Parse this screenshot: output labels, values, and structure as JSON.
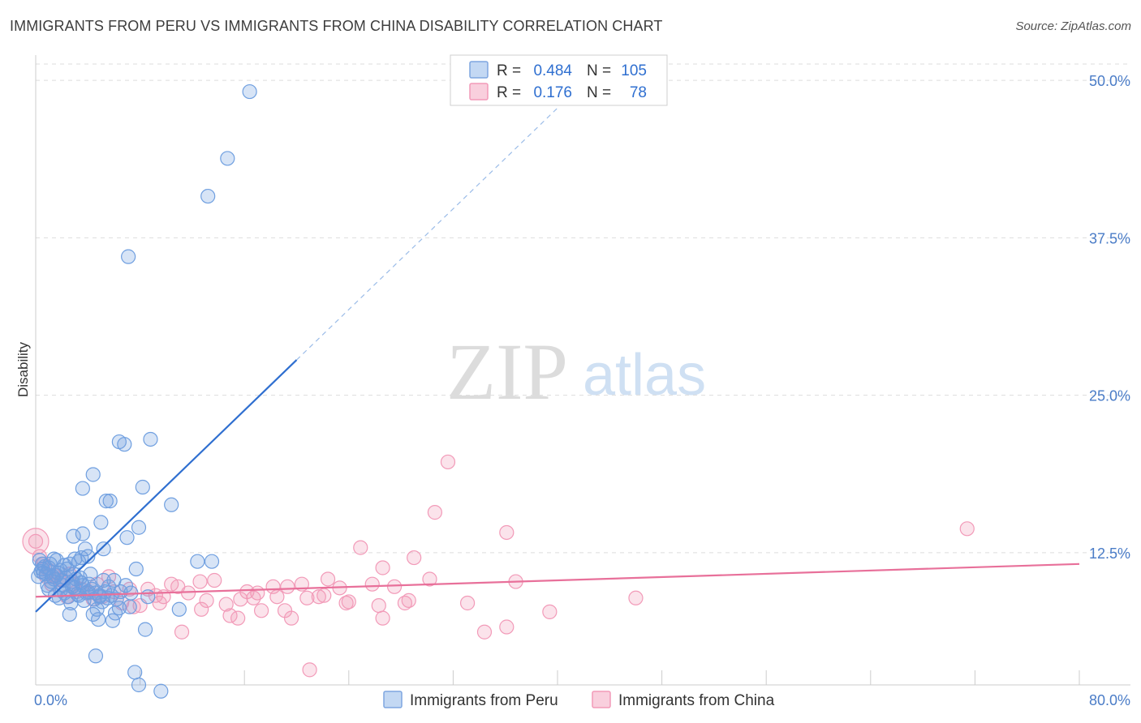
{
  "title": "IMMIGRANTS FROM PERU VS IMMIGRANTS FROM CHINA DISABILITY CORRELATION CHART",
  "source": "Source: ZipAtlas.com",
  "watermark": {
    "zip": "ZIP",
    "atlas": "atlas"
  },
  "colors": {
    "peru": "#6f9fe0",
    "peru_line": "#2f6fd0",
    "china": "#f29ab8",
    "china_line": "#e8709a",
    "tick": "#4a7cc7"
  },
  "legend": {
    "peru": {
      "r_label": "R =",
      "r_value": "0.484",
      "n_label": "N =",
      "n_value": "105"
    },
    "china": {
      "r_label": "R =",
      "r_value": "0.176",
      "n_label": "N =",
      "n_value": "78"
    }
  },
  "chart_data": {
    "type": "scatter",
    "title": "IMMIGRANTS FROM PERU VS IMMIGRANTS FROM CHINA DISABILITY CORRELATION CHART",
    "xlabel": "",
    "ylabel": "Disability",
    "xlim": [
      0,
      80
    ],
    "ylim": [
      2,
      52
    ],
    "x_tick_labels": [
      "0.0%",
      "80.0%"
    ],
    "y_ticks": [
      12.5,
      25.0,
      37.5,
      50.0
    ],
    "y_tick_labels": [
      "12.5%",
      "25.0%",
      "37.5%",
      "50.0%"
    ],
    "series": [
      {
        "name": "Immigrants from Peru",
        "r": 0.484,
        "n": 105,
        "trend": {
          "x1": 0,
          "y1": 7.8,
          "x2": 20,
          "y2": 27.8,
          "dash_to_x": 40,
          "dash_to_y": 47.8
        },
        "points": [
          [
            16.4,
            49.1
          ],
          [
            14.7,
            43.8
          ],
          [
            13.2,
            40.8
          ],
          [
            7.1,
            36.0
          ],
          [
            6.4,
            21.3
          ],
          [
            6.8,
            21.1
          ],
          [
            8.8,
            21.5
          ],
          [
            4.4,
            18.7
          ],
          [
            3.6,
            17.6
          ],
          [
            8.2,
            17.7
          ],
          [
            5.4,
            16.6
          ],
          [
            5.7,
            16.6
          ],
          [
            10.4,
            16.3
          ],
          [
            5.0,
            14.9
          ],
          [
            7.9,
            14.5
          ],
          [
            3.6,
            14.0
          ],
          [
            2.9,
            13.8
          ],
          [
            7.0,
            13.7
          ],
          [
            3.8,
            12.8
          ],
          [
            5.2,
            12.8
          ],
          [
            1.4,
            12.0
          ],
          [
            3.0,
            12.0
          ],
          [
            3.5,
            12.1
          ],
          [
            4.0,
            12.2
          ],
          [
            12.4,
            11.8
          ],
          [
            13.5,
            11.8
          ],
          [
            0.5,
            11.2
          ],
          [
            1.0,
            11.3
          ],
          [
            0.4,
            11.0
          ],
          [
            2.2,
            11.5
          ],
          [
            2.6,
            11.6
          ],
          [
            3.3,
            11.8
          ],
          [
            0.8,
            10.8
          ],
          [
            1.3,
            10.6
          ],
          [
            1.7,
            10.9
          ],
          [
            2.4,
            11.2
          ],
          [
            3.1,
            10.4
          ],
          [
            7.7,
            11.2
          ],
          [
            1.2,
            10.2
          ],
          [
            2.0,
            10.3
          ],
          [
            3.5,
            10.1
          ],
          [
            4.1,
            10.0
          ],
          [
            5.2,
            10.3
          ],
          [
            6.0,
            10.3
          ],
          [
            0.9,
            9.9
          ],
          [
            1.9,
            9.5
          ],
          [
            2.8,
            9.8
          ],
          [
            3.2,
            9.2
          ],
          [
            4.3,
            9.6
          ],
          [
            5.6,
            9.8
          ],
          [
            6.9,
            9.9
          ],
          [
            1.5,
            9.1
          ],
          [
            2.5,
            9.0
          ],
          [
            3.9,
            9.3
          ],
          [
            4.9,
            9.1
          ],
          [
            5.8,
            9.1
          ],
          [
            7.3,
            9.3
          ],
          [
            2.7,
            8.5
          ],
          [
            3.7,
            8.7
          ],
          [
            4.5,
            8.8
          ],
          [
            5.1,
            8.6
          ],
          [
            6.2,
            8.8
          ],
          [
            1.8,
            8.9
          ],
          [
            4.7,
            8.0
          ],
          [
            6.4,
            8.1
          ],
          [
            7.2,
            8.2
          ],
          [
            11.0,
            8.0
          ],
          [
            2.6,
            7.6
          ],
          [
            4.4,
            7.6
          ],
          [
            6.1,
            7.7
          ],
          [
            4.8,
            7.2
          ],
          [
            5.9,
            7.1
          ],
          [
            8.4,
            6.4
          ],
          [
            4.6,
            4.3
          ],
          [
            7.6,
            3.0
          ],
          [
            7.9,
            2.0
          ],
          [
            9.6,
            1.5
          ],
          [
            0.3,
            11.9
          ],
          [
            1.1,
            11.6
          ],
          [
            1.6,
            10.7
          ],
          [
            2.3,
            10.5
          ],
          [
            2.9,
            10.8
          ],
          [
            3.4,
            10.5
          ],
          [
            4.2,
            10.8
          ],
          [
            0.6,
            10.9
          ],
          [
            1.4,
            10.4
          ],
          [
            2.1,
            9.9
          ],
          [
            3.0,
            9.7
          ],
          [
            4.6,
            9.3
          ],
          [
            5.3,
            9.4
          ],
          [
            0.2,
            10.6
          ],
          [
            0.7,
            11.4
          ],
          [
            1.9,
            11.1
          ],
          [
            2.8,
            10.2
          ],
          [
            3.6,
            9.9
          ],
          [
            4.0,
            9.4
          ],
          [
            4.9,
            9.0
          ],
          [
            5.5,
            8.9
          ],
          [
            6.5,
            9.4
          ],
          [
            8.6,
            9.0
          ],
          [
            1.0,
            9.6
          ],
          [
            2.2,
            9.3
          ],
          [
            3.3,
            9.1
          ],
          [
            0.5,
            11.6
          ],
          [
            1.6,
            11.9
          ]
        ]
      },
      {
        "name": "Immigrants from China",
        "r": 0.176,
        "n": 78,
        "trend": {
          "x1": 0,
          "y1": 9.0,
          "x2": 80,
          "y2": 11.6
        },
        "points": [
          [
            31.6,
            19.7
          ],
          [
            30.6,
            15.7
          ],
          [
            36.1,
            14.1
          ],
          [
            71.4,
            14.4
          ],
          [
            24.9,
            12.9
          ],
          [
            29.0,
            12.1
          ],
          [
            26.6,
            11.3
          ],
          [
            30.2,
            10.4
          ],
          [
            36.8,
            10.2
          ],
          [
            25.8,
            10.0
          ],
          [
            27.5,
            9.8
          ],
          [
            22.4,
            10.4
          ],
          [
            23.3,
            9.7
          ],
          [
            20.4,
            10.0
          ],
          [
            19.3,
            9.8
          ],
          [
            18.2,
            9.8
          ],
          [
            16.2,
            9.4
          ],
          [
            17.0,
            9.3
          ],
          [
            13.7,
            10.3
          ],
          [
            12.6,
            10.2
          ],
          [
            10.4,
            10.0
          ],
          [
            10.9,
            9.8
          ],
          [
            8.6,
            9.6
          ],
          [
            9.2,
            9.1
          ],
          [
            11.7,
            9.3
          ],
          [
            14.6,
            8.4
          ],
          [
            15.7,
            8.8
          ],
          [
            18.5,
            9.0
          ],
          [
            21.7,
            9.0
          ],
          [
            22.1,
            9.1
          ],
          [
            28.6,
            8.7
          ],
          [
            33.1,
            8.5
          ],
          [
            46.0,
            8.9
          ],
          [
            23.8,
            8.5
          ],
          [
            26.3,
            8.3
          ],
          [
            28.3,
            8.5
          ],
          [
            12.7,
            8.0
          ],
          [
            14.9,
            7.5
          ],
          [
            17.3,
            7.9
          ],
          [
            19.1,
            7.9
          ],
          [
            39.4,
            7.8
          ],
          [
            15.5,
            7.3
          ],
          [
            19.6,
            7.3
          ],
          [
            26.6,
            7.3
          ],
          [
            34.4,
            6.2
          ],
          [
            36.1,
            6.6
          ],
          [
            11.2,
            6.2
          ],
          [
            21.0,
            3.2
          ],
          [
            7.2,
            9.6
          ],
          [
            6.0,
            9.4
          ],
          [
            5.1,
            9.0
          ],
          [
            6.6,
            8.5
          ],
          [
            8.0,
            8.3
          ],
          [
            4.1,
            9.3
          ],
          [
            3.5,
            9.6
          ],
          [
            2.9,
            10.0
          ],
          [
            2.1,
            10.3
          ],
          [
            1.4,
            10.7
          ],
          [
            1.0,
            11.1
          ],
          [
            0.6,
            11.6
          ],
          [
            0.3,
            12.2
          ],
          [
            0.0,
            13.4
          ],
          [
            1.8,
            10.4
          ],
          [
            2.6,
            10.8
          ],
          [
            4.7,
            10.0
          ],
          [
            5.6,
            10.6
          ],
          [
            9.8,
            9.0
          ],
          [
            9.5,
            8.5
          ],
          [
            7.5,
            8.2
          ],
          [
            4.4,
            8.8
          ],
          [
            3.1,
            9.4
          ],
          [
            2.4,
            9.0
          ],
          [
            1.2,
            10.0
          ],
          [
            0.8,
            10.6
          ],
          [
            13.1,
            8.7
          ],
          [
            16.7,
            8.9
          ],
          [
            20.8,
            8.9
          ],
          [
            24.0,
            8.6
          ]
        ]
      }
    ],
    "legend_labels": [
      "Immigrants from Peru",
      "Immigrants from China"
    ]
  }
}
